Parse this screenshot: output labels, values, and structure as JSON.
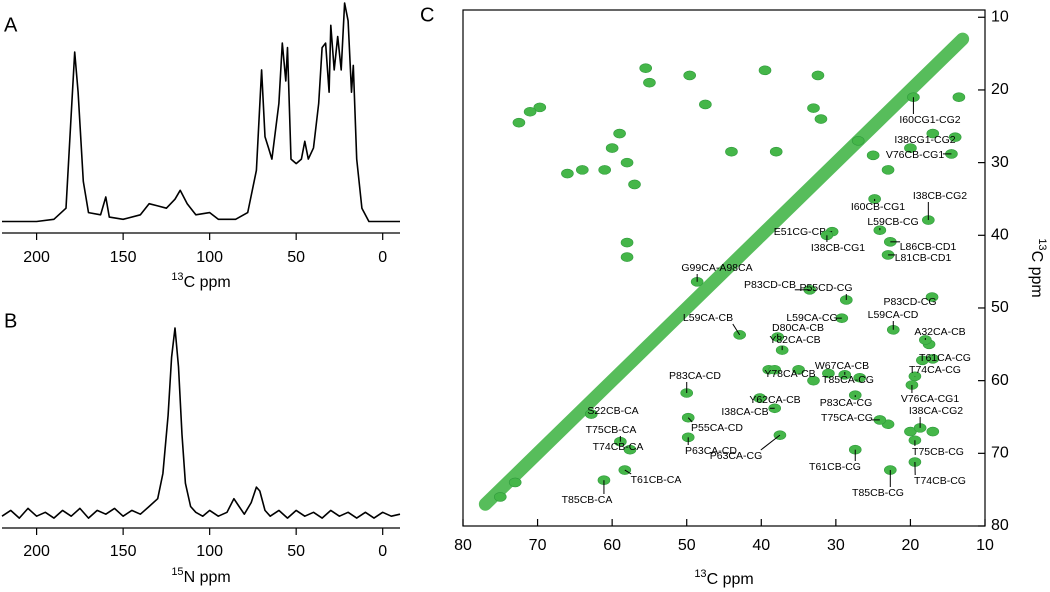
{
  "chart_data": [
    {
      "type": "line",
      "panel_label": "A",
      "xlabel_sup": "13",
      "xlabel": "C ppm",
      "color": "#000000",
      "xlim": [
        220,
        -10
      ],
      "xticks": [
        200,
        150,
        100,
        50,
        0
      ],
      "ylim": [
        0,
        100
      ],
      "x": [
        220,
        200,
        190,
        183,
        180,
        178,
        176,
        173,
        170,
        163,
        160,
        158,
        150,
        140,
        135,
        130,
        125,
        120,
        117,
        113,
        108,
        100,
        95,
        85,
        78,
        73,
        70,
        68,
        66,
        64,
        60,
        58,
        56,
        55,
        53,
        50,
        47,
        45,
        43,
        40,
        37,
        35,
        33,
        31,
        30,
        28,
        26,
        24,
        22,
        20,
        18,
        17,
        15,
        12,
        8,
        0,
        -10
      ],
      "values": [
        2,
        2,
        3,
        8,
        50,
        78,
        60,
        20,
        6,
        5,
        13,
        4,
        3,
        5,
        10,
        9,
        8,
        12,
        16,
        10,
        5,
        6,
        3,
        3,
        6,
        25,
        70,
        40,
        35,
        30,
        55,
        82,
        65,
        80,
        30,
        28,
        30,
        38,
        30,
        35,
        55,
        80,
        82,
        60,
        90,
        70,
        85,
        70,
        100,
        92,
        60,
        72,
        30,
        8,
        2,
        2,
        2
      ]
    },
    {
      "type": "line",
      "panel_label": "B",
      "xlabel_sup": "15",
      "xlabel": "N ppm",
      "color": "#000000",
      "xlim": [
        220,
        -10
      ],
      "xticks": [
        200,
        150,
        100,
        50,
        0
      ],
      "ylim": [
        0,
        100
      ],
      "x": [
        220,
        215,
        210,
        205,
        200,
        195,
        190,
        185,
        180,
        175,
        170,
        165,
        160,
        155,
        150,
        145,
        140,
        135,
        130,
        127,
        124,
        122,
        120,
        118,
        116,
        114,
        111,
        108,
        104,
        100,
        95,
        90,
        86,
        83,
        80,
        76,
        73,
        71,
        68,
        65,
        60,
        55,
        50,
        45,
        40,
        35,
        30,
        25,
        20,
        15,
        10,
        5,
        0,
        -5,
        -10
      ],
      "values": [
        3,
        6,
        2,
        7,
        3,
        5,
        2,
        6,
        3,
        7,
        2,
        6,
        4,
        7,
        3,
        6,
        4,
        8,
        12,
        25,
        55,
        85,
        100,
        80,
        45,
        20,
        8,
        5,
        3,
        6,
        3,
        5,
        12,
        8,
        4,
        10,
        18,
        16,
        6,
        3,
        6,
        2,
        6,
        3,
        5,
        2,
        6,
        3,
        5,
        2,
        5,
        2,
        5,
        3,
        4
      ]
    },
    {
      "type": "contour",
      "panel_label": "C",
      "xlabel_sup": "13",
      "xlabel": "C ppm",
      "ylabel_sup": "13",
      "ylabel": "C ppm",
      "color": "#45b649",
      "xlim": [
        80,
        10
      ],
      "xticks": [
        80,
        70,
        60,
        50,
        40,
        30,
        20,
        10
      ],
      "ylim": [
        9,
        80
      ],
      "yticks": [
        10,
        20,
        30,
        40,
        50,
        60,
        70,
        80
      ],
      "diagonal": {
        "x": [
          77,
          70,
          60,
          50,
          40,
          30,
          20,
          13
        ],
        "y": [
          77,
          70,
          60,
          50,
          40,
          30,
          20,
          13
        ]
      },
      "peaks": {
        "x": [
          69.7,
          71,
          72.5,
          60,
          58,
          61,
          57,
          59,
          66,
          64,
          58,
          58,
          55.5,
          55,
          49.6,
          47.5,
          39.5,
          32.4,
          33,
          32,
          44,
          38,
          27,
          25,
          23,
          20,
          17,
          13.5,
          39,
          35,
          31,
          33,
          23,
          20,
          17,
          17.5,
          17,
          75,
          73
        ],
        "y": [
          22.4,
          23,
          24.5,
          28,
          30,
          31,
          33,
          26,
          31.5,
          31,
          41,
          43,
          17,
          19,
          18,
          22,
          17.3,
          18,
          22.5,
          24,
          28.5,
          28.5,
          27,
          29,
          31,
          28,
          26,
          21,
          58.5,
          58.5,
          59,
          60,
          66,
          67,
          67,
          55,
          57,
          76,
          74
        ]
      },
      "annotations": [
        {
          "text": "I60CG1-CG2",
          "x": 19.6,
          "y": 21.0
        },
        {
          "text": "I38CG1-CG2",
          "x": 14.0,
          "y": 26.5
        },
        {
          "text": "V76CB-CG1",
          "x": 14.5,
          "y": 28.8
        },
        {
          "text": "I38CB-CG2",
          "x": 17.6,
          "y": 37.9
        },
        {
          "text": "I60CB-CG1",
          "x": 24.8,
          "y": 35.0
        },
        {
          "text": "L59CB-CG",
          "x": 24.1,
          "y": 39.3
        },
        {
          "text": "E51CG-CB",
          "x": 30.5,
          "y": 39.5
        },
        {
          "text": "I38CB-CG1",
          "x": 31.2,
          "y": 40.0
        },
        {
          "text": "L86CB-CD1",
          "x": 22.7,
          "y": 40.9
        },
        {
          "text": "L81CB-CD1",
          "x": 23.0,
          "y": 42.7
        },
        {
          "text": "G99CA-A98CA",
          "x": 48.6,
          "y": 46.4
        },
        {
          "text": "P83CD-CB",
          "x": 33.5,
          "y": 47.5
        },
        {
          "text": "P55CD-CG",
          "x": 28.6,
          "y": 48.9
        },
        {
          "text": "P83CD-CG",
          "x": 17.1,
          "y": 48.5
        },
        {
          "text": "L59CA-CG",
          "x": 29.2,
          "y": 51.4
        },
        {
          "text": "L59CA-CD",
          "x": 22.3,
          "y": 53.0
        },
        {
          "text": "L59CA-CB",
          "x": 42.9,
          "y": 53.7
        },
        {
          "text": "D80CA-CB",
          "x": 37.8,
          "y": 54.0
        },
        {
          "text": "Y82CA-CB",
          "x": 37.2,
          "y": 55.8
        },
        {
          "text": "A32CA-CB",
          "x": 18.0,
          "y": 54.4
        },
        {
          "text": "W67CA-CB",
          "x": 28.8,
          "y": 59.2
        },
        {
          "text": "T61CA-CG",
          "x": 18.4,
          "y": 57.2
        },
        {
          "text": "T74CA-CG",
          "x": 19.4,
          "y": 59.4
        },
        {
          "text": "Y78CA-CB",
          "x": 38.2,
          "y": 58.5
        },
        {
          "text": "T85CA-CG",
          "x": 26.8,
          "y": 59.6
        },
        {
          "text": "Y62CA-CB",
          "x": 40.2,
          "y": 62.4
        },
        {
          "text": "P83CA-CG",
          "x": 27.4,
          "y": 62.0
        },
        {
          "text": "V76CA-CG1",
          "x": 19.8,
          "y": 60.6
        },
        {
          "text": "I38CA-CG2",
          "x": 18.7,
          "y": 66.5
        },
        {
          "text": "P83CA-CD",
          "x": 50.0,
          "y": 61.7
        },
        {
          "text": "I38CA-CB",
          "x": 38.2,
          "y": 63.8
        },
        {
          "text": "T75CA-CG",
          "x": 24.1,
          "y": 65.4
        },
        {
          "text": "S22CB-CA",
          "x": 62.8,
          "y": 64.6
        },
        {
          "text": "P55CA-CD",
          "x": 49.8,
          "y": 65.1
        },
        {
          "text": "P63CA-CD",
          "x": 49.8,
          "y": 67.8
        },
        {
          "text": "T75CB-CA",
          "x": 58.9,
          "y": 68.4
        },
        {
          "text": "T74CB-CA",
          "x": 57.6,
          "y": 69.5
        },
        {
          "text": "P63CA-CG",
          "x": 37.5,
          "y": 67.5
        },
        {
          "text": "T61CB-CG",
          "x": 27.4,
          "y": 69.5
        },
        {
          "text": "T75CB-CG",
          "x": 19.4,
          "y": 68.2
        },
        {
          "text": "T74CB-CG",
          "x": 19.4,
          "y": 71.2
        },
        {
          "text": "T85CB-CG",
          "x": 22.7,
          "y": 72.3
        },
        {
          "text": "T61CB-CA",
          "x": 58.3,
          "y": 72.3
        },
        {
          "text": "T85CB-CA",
          "x": 61.1,
          "y": 73.7
        }
      ]
    }
  ]
}
